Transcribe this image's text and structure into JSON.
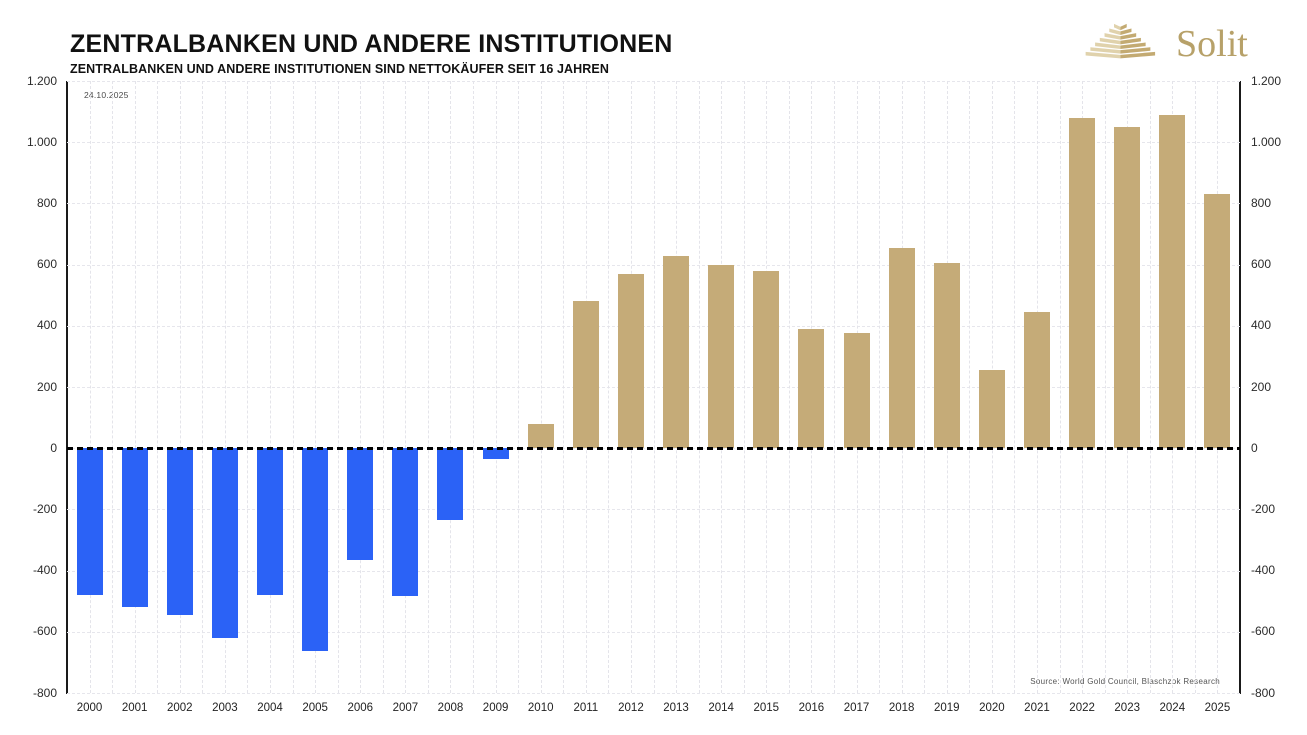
{
  "logo": {
    "brand": "Solit",
    "icon": "stepped-pyramid-icon",
    "brand_color": "#B7A169"
  },
  "annotations": {
    "date_label": "24.10.2025",
    "source": "Source: World Gold Council, Blaschzok Research"
  },
  "chart_data": {
    "type": "bar",
    "title": "ZENTRALBANKEN UND ANDERE INSTITUTIONEN",
    "subtitle": "ZENTRALBANKEN UND ANDERE INSTITUTIONEN SIND NETTOKÄUFER SEIT 16 JAHREN",
    "categories": [
      "2000",
      "2001",
      "2002",
      "2003",
      "2004",
      "2005",
      "2006",
      "2007",
      "2008",
      "2009",
      "2010",
      "2011",
      "2012",
      "2013",
      "2014",
      "2015",
      "2016",
      "2017",
      "2018",
      "2019",
      "2020",
      "2021",
      "2022",
      "2023",
      "2024",
      "2025"
    ],
    "values": [
      -479,
      -520,
      -545,
      -620,
      -479,
      -663,
      -365,
      -484,
      -235,
      -34,
      79,
      480,
      569,
      627,
      600,
      579,
      390,
      375,
      653,
      605,
      255,
      446,
      1080,
      1050,
      1089,
      832
    ],
    "ylim": [
      -800,
      1200
    ],
    "y_tick_values": [
      1200,
      1000,
      800,
      600,
      400,
      200,
      0,
      -200,
      -400,
      -600,
      -800
    ],
    "y_tick_labels": [
      "1.200",
      "1.000",
      "800",
      "600",
      "400",
      "200",
      "0",
      "-200",
      "-400",
      "-600",
      "-800"
    ],
    "grid": true,
    "zero_line": true,
    "legend": "none",
    "colors": {
      "positive_bar": "#C5AB78",
      "negative_bar": "#2B62F6",
      "grid": "#E4E4EA",
      "zero_line": "#000000"
    }
  }
}
